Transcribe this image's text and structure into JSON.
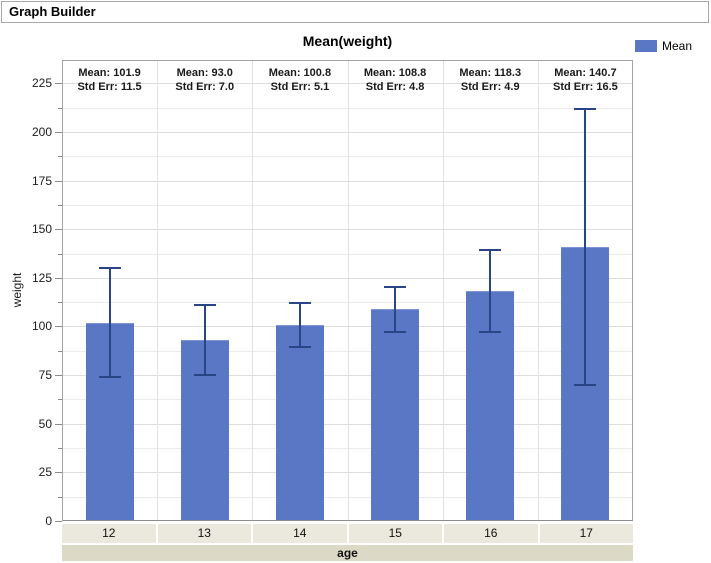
{
  "header": {
    "title": "Graph Builder"
  },
  "legend": {
    "label": "Mean"
  },
  "colors": {
    "bar": "#5a77c5",
    "bar_highlight": "#7e94d3",
    "error_bar": "#2a4585",
    "grid_major": "#dedede",
    "grid_minor": "#ebebeb",
    "frame": "#a3a3a3",
    "band_categories": "#ebe9dd",
    "band_axis_label": "#dcd9c7"
  },
  "chart_data": {
    "type": "bar",
    "title": "Mean(weight)",
    "xlabel": "age",
    "ylabel": "weight",
    "categories": [
      "12",
      "13",
      "14",
      "15",
      "16",
      "17"
    ],
    "series": [
      {
        "name": "Mean",
        "values": [
          101.9,
          93.0,
          100.8,
          108.8,
          118.3,
          140.7
        ]
      }
    ],
    "std_errors": [
      11.5,
      7.0,
      5.1,
      4.8,
      4.9,
      16.5
    ],
    "error_bars": [
      {
        "low": 73.8,
        "high": 130.0
      },
      {
        "low": 75.0,
        "high": 111.0
      },
      {
        "low": 89.6,
        "high": 112.0
      },
      {
        "low": 97.1,
        "high": 120.5
      },
      {
        "low": 97.2,
        "high": 139.4
      },
      {
        "low": 69.7,
        "high": 211.7
      }
    ],
    "annotations": [
      {
        "line1": "Mean: 101.9",
        "line2": "Std Err: 11.5"
      },
      {
        "line1": "Mean: 93.0",
        "line2": "Std Err: 7.0"
      },
      {
        "line1": "Mean: 100.8",
        "line2": "Std Err: 5.1"
      },
      {
        "line1": "Mean: 108.8",
        "line2": "Std Err: 4.8"
      },
      {
        "line1": "Mean: 118.3",
        "line2": "Std Err: 4.9"
      },
      {
        "line1": "Mean: 140.7",
        "line2": "Std Err: 16.5"
      }
    ],
    "y_ticks": [
      0,
      25,
      50,
      75,
      100,
      125,
      150,
      175,
      200,
      225
    ],
    "minor_tick_step": 12.5,
    "ylim": [
      0,
      237
    ],
    "grid": true,
    "legend_position": "top-right"
  }
}
